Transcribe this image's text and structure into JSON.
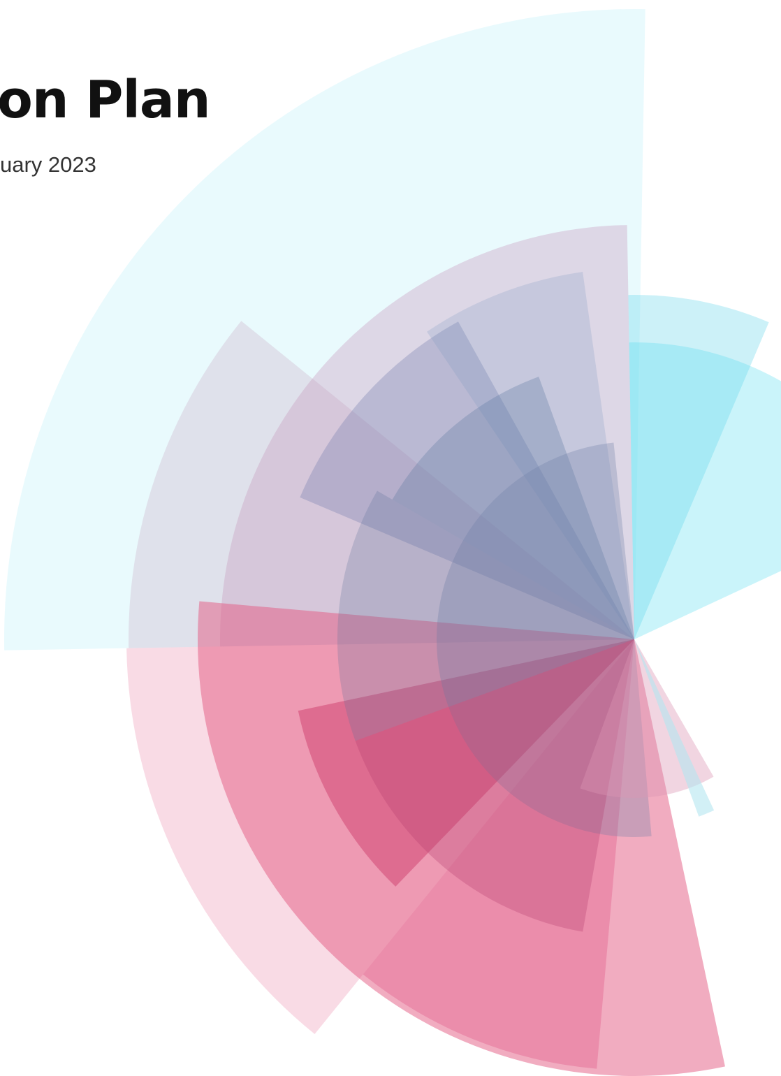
{
  "header": {
    "title": "on Plan",
    "subtitle": "uary 2023"
  }
}
